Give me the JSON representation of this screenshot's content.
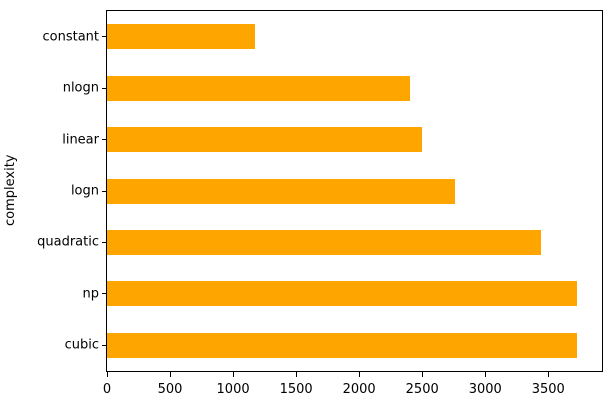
{
  "chart_data": {
    "type": "bar",
    "orientation": "horizontal",
    "title": "",
    "ylabel": "complexity",
    "xlabel": "",
    "categories": [
      "constant",
      "nlogn",
      "linear",
      "logn",
      "quadratic",
      "np",
      "cubic"
    ],
    "values": [
      1175,
      2400,
      2500,
      2760,
      3440,
      3730,
      3730
    ],
    "xticks": [
      0,
      500,
      1000,
      1500,
      2000,
      2500,
      3000,
      3500
    ],
    "xlim": [
      0,
      3926
    ],
    "bar_color": "#ffa500",
    "grid": false,
    "legend": false,
    "frame": "full-box"
  }
}
